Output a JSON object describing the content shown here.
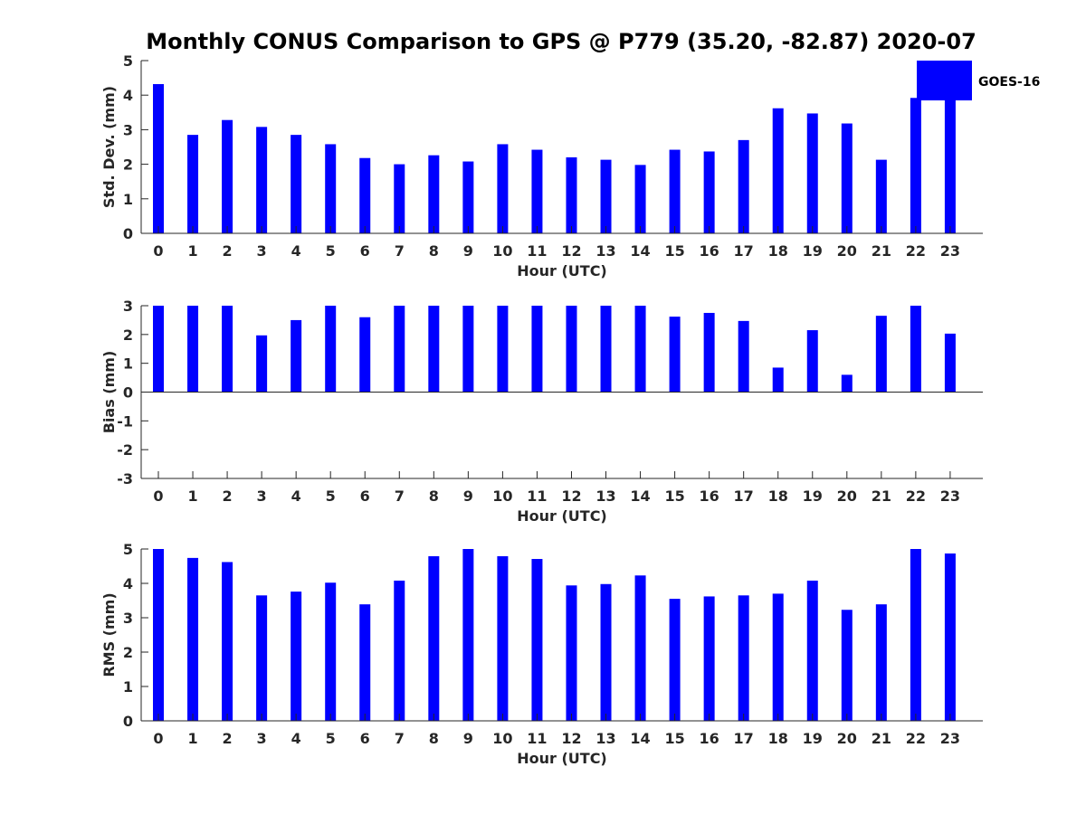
{
  "chart_data": [
    {
      "type": "bar",
      "title": "Monthly CONUS Comparison to GPS @ P779 (35.20, -82.87) 2020-07",
      "xlabel": "Hour (UTC)",
      "ylabel": "Std. Dev. (mm)",
      "ylim": [
        0,
        5
      ],
      "yticks": [
        "0",
        "1",
        "2",
        "3",
        "4",
        "5"
      ],
      "categories": [
        "0",
        "1",
        "2",
        "3",
        "4",
        "5",
        "6",
        "7",
        "8",
        "9",
        "10",
        "11",
        "12",
        "13",
        "14",
        "15",
        "16",
        "17",
        "18",
        "19",
        "20",
        "21",
        "22",
        "23"
      ],
      "series": [
        {
          "name": "GOES-16",
          "color": "#0000ff",
          "values": [
            4.32,
            2.85,
            3.28,
            3.08,
            2.85,
            2.58,
            2.18,
            2.0,
            2.26,
            2.08,
            2.58,
            2.42,
            2.2,
            2.13,
            1.98,
            2.42,
            2.37,
            2.7,
            3.62,
            3.47,
            3.18,
            2.13,
            3.92,
            3.88
          ]
        }
      ],
      "legend": {
        "labels": [
          "GOES-16"
        ],
        "placement": "top-right"
      }
    },
    {
      "type": "bar",
      "xlabel": "Hour (UTC)",
      "ylabel": "Bias (mm)",
      "ylim": [
        -3,
        3
      ],
      "yticks": [
        "-3",
        "-2",
        "-1",
        "0",
        "1",
        "2",
        "3"
      ],
      "categories": [
        "0",
        "1",
        "2",
        "3",
        "4",
        "5",
        "6",
        "7",
        "8",
        "9",
        "10",
        "11",
        "12",
        "13",
        "14",
        "15",
        "16",
        "17",
        "18",
        "19",
        "20",
        "21",
        "22",
        "23"
      ],
      "series": [
        {
          "name": "GOES-16",
          "color": "#0000ff",
          "values": [
            3.0,
            3.0,
            3.0,
            1.97,
            2.5,
            3.0,
            2.6,
            3.0,
            3.0,
            3.0,
            3.0,
            3.0,
            3.0,
            3.0,
            3.0,
            2.62,
            2.75,
            2.47,
            0.85,
            2.15,
            0.6,
            2.65,
            3.0,
            2.03
          ]
        }
      ]
    },
    {
      "type": "bar",
      "xlabel": "Hour (UTC)",
      "ylabel": "RMS (mm)",
      "ylim": [
        0,
        5
      ],
      "yticks": [
        "0",
        "1",
        "2",
        "3",
        "4",
        "5"
      ],
      "categories": [
        "0",
        "1",
        "2",
        "3",
        "4",
        "5",
        "6",
        "7",
        "8",
        "9",
        "10",
        "11",
        "12",
        "13",
        "14",
        "15",
        "16",
        "17",
        "18",
        "19",
        "20",
        "21",
        "22",
        "23"
      ],
      "series": [
        {
          "name": "GOES-16",
          "color": "#0000ff",
          "values": [
            5.0,
            4.74,
            4.62,
            3.65,
            3.76,
            4.02,
            3.39,
            4.08,
            4.79,
            5.0,
            4.79,
            4.71,
            3.94,
            3.98,
            4.23,
            3.55,
            3.62,
            3.65,
            3.7,
            4.08,
            3.23,
            3.39,
            5.0,
            4.87
          ]
        }
      ]
    }
  ]
}
